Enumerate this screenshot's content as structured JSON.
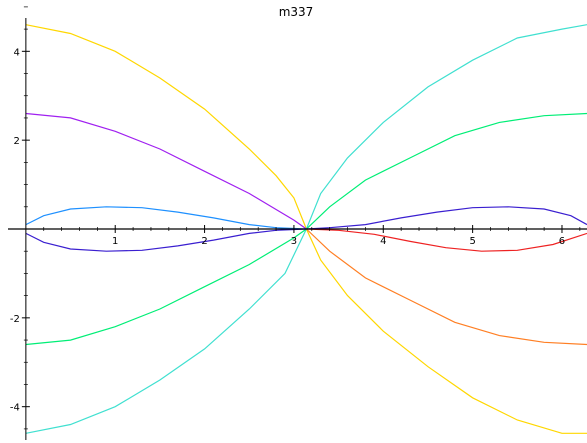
{
  "chart_data": {
    "type": "line",
    "title": "m337",
    "xlabel": "",
    "ylabel": "",
    "xlim": [
      -0.2,
      6.28
    ],
    "ylim": [
      -4.75,
      4.75
    ],
    "grid": false,
    "legend": "none",
    "x_ticks": [
      {
        "value": 1,
        "label": "1"
      },
      {
        "value": 2,
        "label": "2"
      },
      {
        "value": 3,
        "label": "3"
      },
      {
        "value": 4,
        "label": "4"
      },
      {
        "value": 5,
        "label": "5"
      },
      {
        "value": 6,
        "label": "6"
      }
    ],
    "y_ticks": [
      {
        "value": 4,
        "label": "4"
      },
      {
        "value": 2,
        "label": "2"
      },
      {
        "value": -2,
        "label": "-2"
      },
      {
        "value": -4,
        "label": "-4"
      }
    ],
    "series": [
      {
        "color": "#ffd700",
        "x": [
          0,
          0.5,
          1,
          1.5,
          2,
          2.5,
          2.8,
          3.0,
          3.14,
          3.3,
          3.6,
          4,
          4.5,
          5,
          5.5,
          6,
          6.28
        ],
        "y": [
          4.6,
          4.4,
          4.0,
          3.4,
          2.7,
          1.8,
          1.2,
          0.7,
          0.0,
          -0.7,
          -1.5,
          -2.3,
          -3.1,
          -3.8,
          -4.3,
          -4.6,
          -4.6
        ]
      },
      {
        "color": "#a020f0",
        "x": [
          0,
          0.5,
          1,
          1.5,
          2,
          2.5,
          3.0,
          3.14
        ],
        "y": [
          2.6,
          2.5,
          2.2,
          1.8,
          1.3,
          0.8,
          0.2,
          0.0
        ]
      },
      {
        "color": "#40e0d0",
        "x": [
          0,
          0.5,
          1,
          1.5,
          2,
          2.5,
          2.9,
          3.14,
          3.3,
          3.6,
          4,
          4.5,
          5,
          5.5,
          6,
          6.28
        ],
        "y": [
          -4.6,
          -4.4,
          -4.0,
          -3.4,
          -2.7,
          -1.8,
          -1.0,
          0.0,
          0.8,
          1.6,
          2.4,
          3.2,
          3.8,
          4.3,
          4.5,
          4.6
        ]
      },
      {
        "color": "#00ee76",
        "x": [
          0,
          0.5,
          1,
          1.5,
          2,
          2.5,
          3.0,
          3.14,
          3.4,
          3.8,
          4.3,
          4.8,
          5.3,
          5.8,
          6.28
        ],
        "y": [
          -2.6,
          -2.5,
          -2.2,
          -1.8,
          -1.3,
          -0.8,
          -0.2,
          0.0,
          0.5,
          1.1,
          1.6,
          2.1,
          2.4,
          2.55,
          2.6
        ]
      },
      {
        "color": "#ff7f24",
        "x": [
          3.14,
          3.4,
          3.8,
          4.3,
          4.8,
          5.3,
          5.8,
          6.28
        ],
        "y": [
          0.0,
          -0.5,
          -1.1,
          -1.6,
          -2.1,
          -2.4,
          -2.55,
          -2.6
        ]
      },
      {
        "color": "#1e90ff",
        "x": [
          0,
          0.2,
          0.5,
          0.9,
          1.3,
          1.7,
          2.1,
          2.5,
          2.8,
          3.14
        ],
        "y": [
          0.1,
          0.3,
          0.45,
          0.5,
          0.48,
          0.38,
          0.25,
          0.1,
          0.03,
          0.0
        ]
      },
      {
        "color": "#3a1fd0",
        "x": [
          0,
          0.2,
          0.5,
          0.9,
          1.3,
          1.7,
          2.1,
          2.5,
          2.8,
          3.14,
          3.4,
          3.8,
          4.2,
          4.6,
          5.0,
          5.4,
          5.8,
          6.1,
          6.28
        ],
        "y": [
          -0.1,
          -0.3,
          -0.45,
          -0.5,
          -0.48,
          -0.38,
          -0.25,
          -0.1,
          -0.03,
          0.0,
          0.03,
          0.1,
          0.25,
          0.38,
          0.48,
          0.5,
          0.45,
          0.3,
          0.1
        ]
      },
      {
        "color": "#ee2222",
        "x": [
          3.14,
          3.5,
          3.9,
          4.3,
          4.7,
          5.1,
          5.5,
          5.9,
          6.28
        ],
        "y": [
          0.0,
          -0.03,
          -0.12,
          -0.28,
          -0.42,
          -0.5,
          -0.48,
          -0.35,
          -0.1
        ]
      },
      {
        "color": "#000000",
        "x": [
          -0.2,
          6.28
        ],
        "y": [
          0.0,
          0.0
        ]
      }
    ]
  }
}
